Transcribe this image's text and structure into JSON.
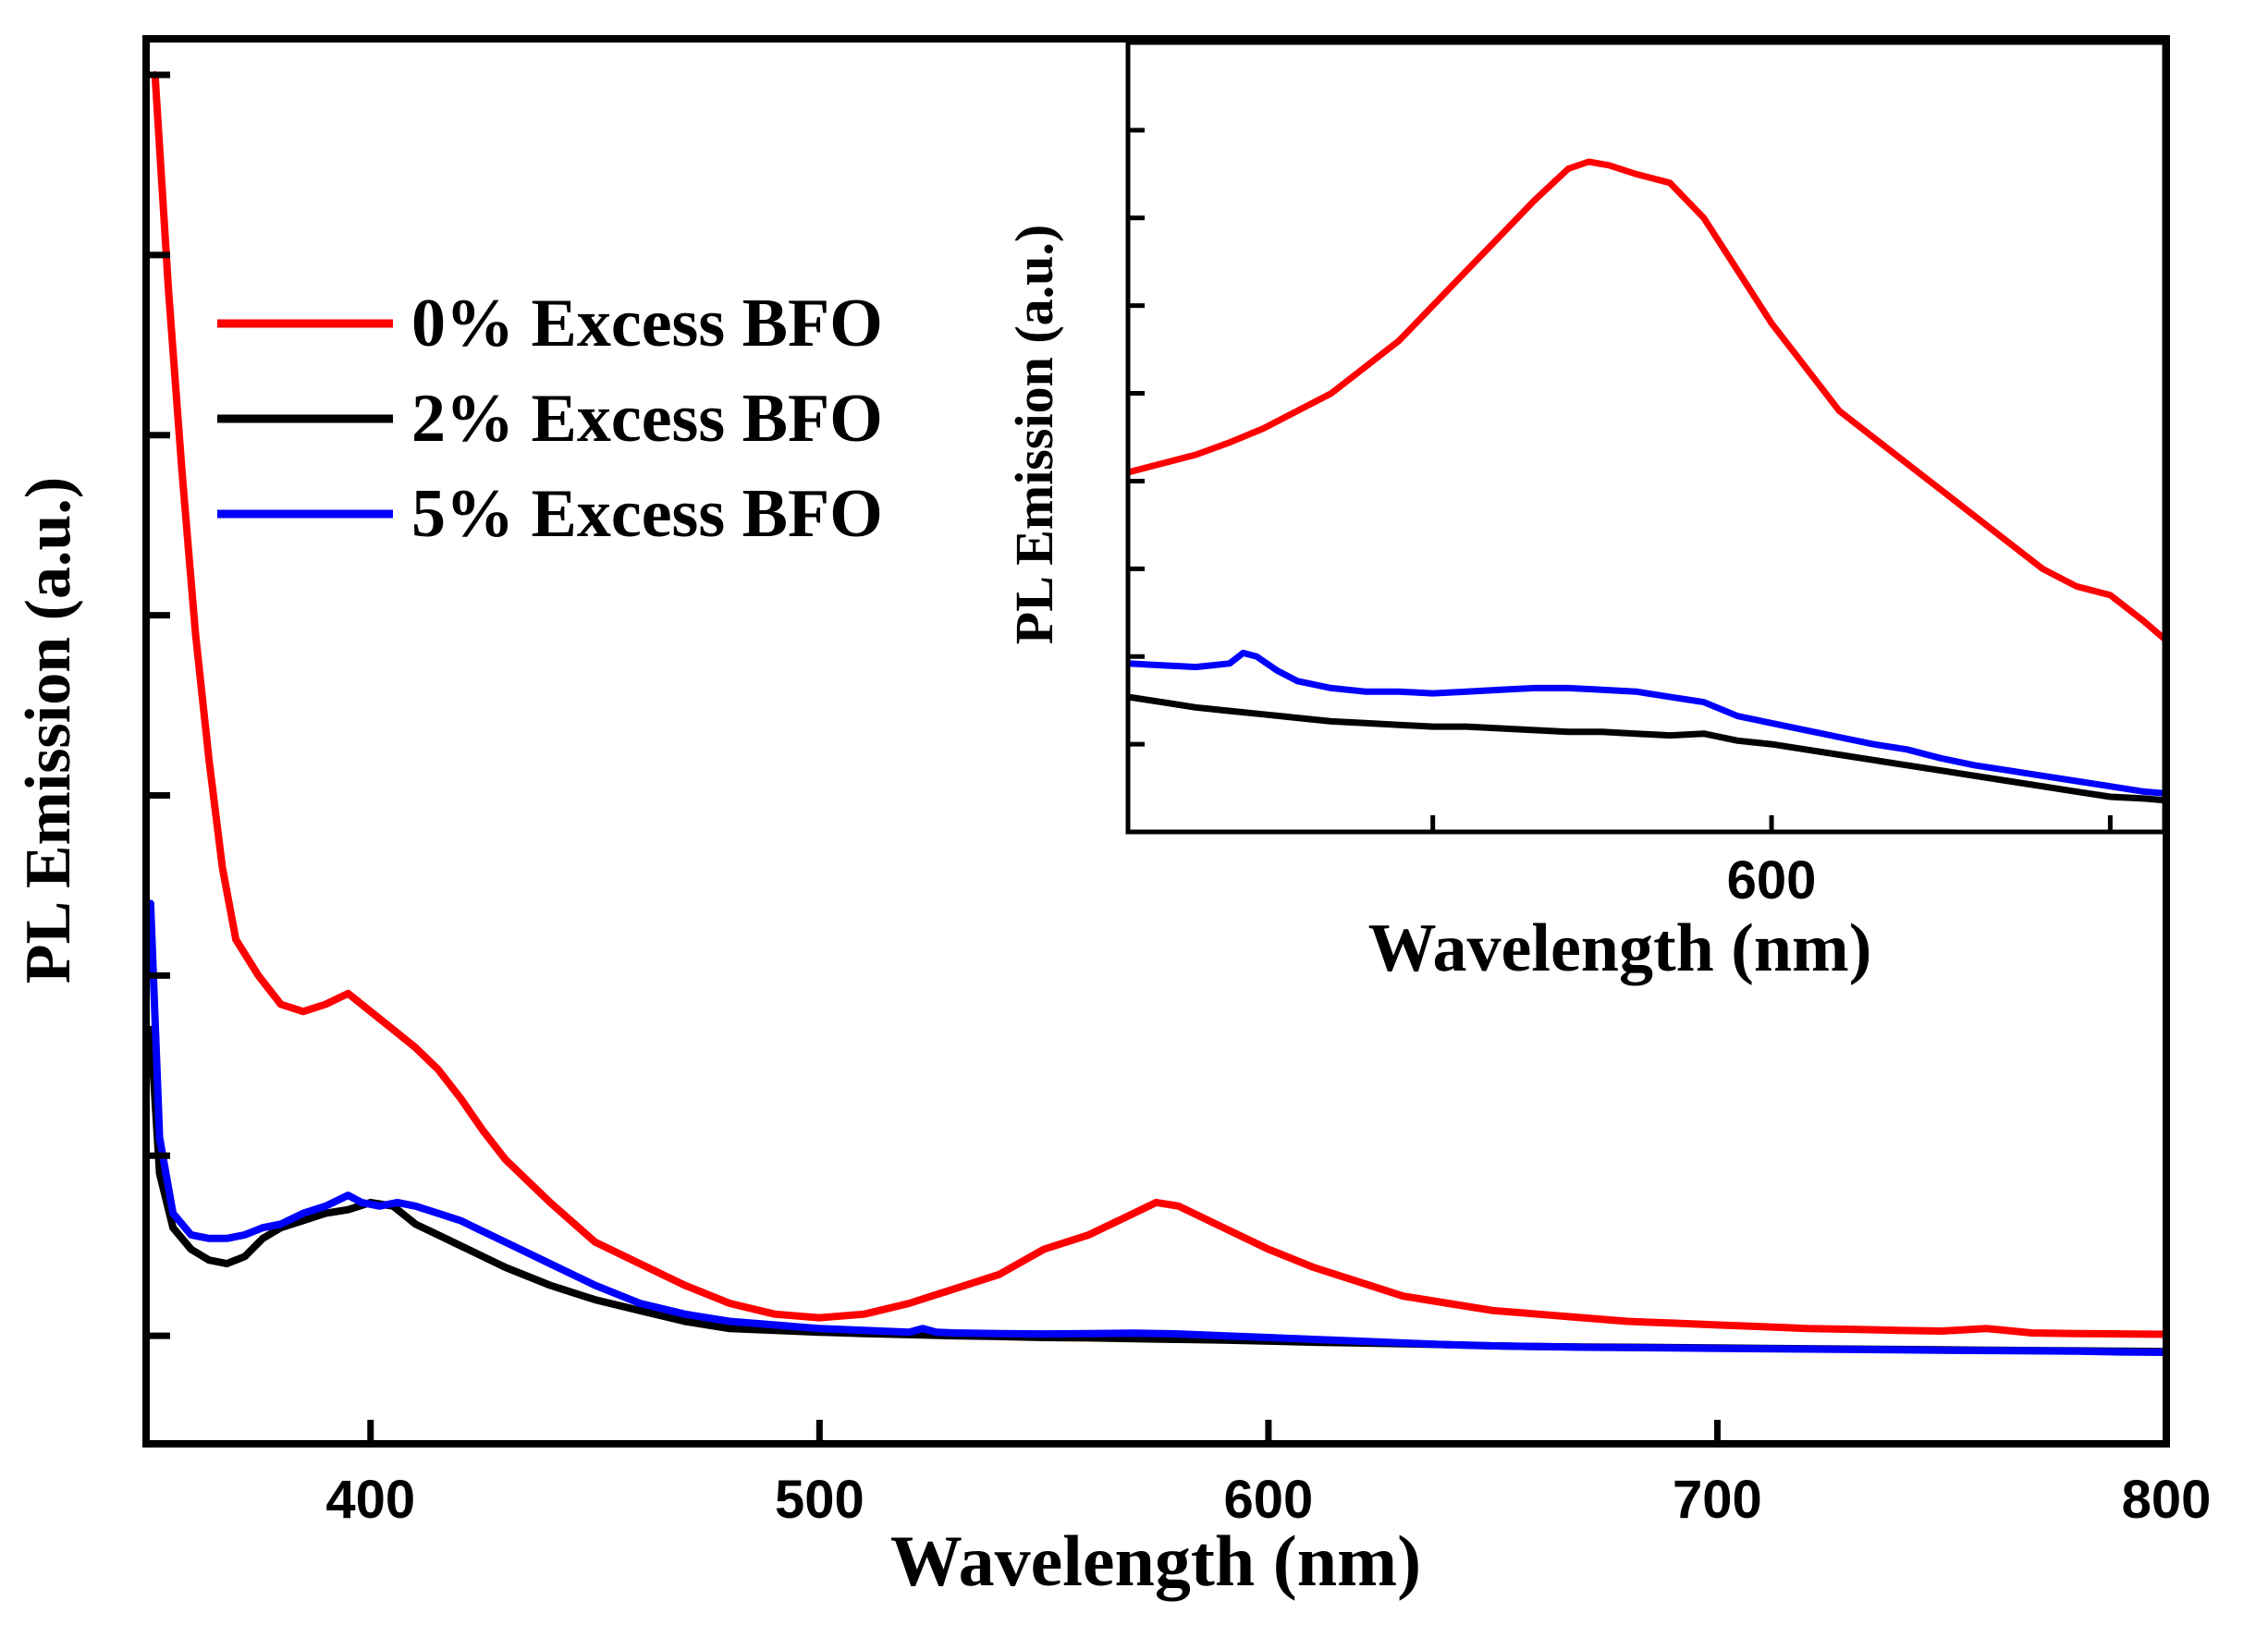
{
  "chart_data": [
    {
      "type": "line",
      "xlabel": "Wavelength (nm)",
      "ylabel": "PL Emission (a.u.)",
      "xlim": [
        350,
        800
      ],
      "ylim": [
        -0.3,
        3.6
      ],
      "x_tick_labels": [
        "400",
        "500",
        "600",
        "700",
        "800"
      ],
      "y_ticks_unlabeled": [
        0,
        0.5,
        1,
        1.5,
        2,
        2.5,
        3,
        3.5
      ],
      "legend_position": "upper-left",
      "series": [
        {
          "name": "0% Excess BFO",
          "color": "#ff0000",
          "x": [
            352,
            355,
            358,
            361,
            364,
            367,
            370,
            375,
            380,
            385,
            390,
            395,
            400,
            405,
            410,
            415,
            420,
            425,
            430,
            440,
            450,
            460,
            470,
            480,
            490,
            500,
            510,
            520,
            530,
            540,
            550,
            560,
            570,
            575,
            580,
            590,
            600,
            610,
            620,
            630,
            640,
            650,
            660,
            670,
            680,
            690,
            700,
            710,
            720,
            730,
            740,
            750,
            760,
            770,
            780,
            790,
            800
          ],
          "y": [
            3.5,
            2.9,
            2.4,
            1.95,
            1.6,
            1.3,
            1.1,
            1.0,
            0.92,
            0.9,
            0.92,
            0.95,
            0.9,
            0.85,
            0.8,
            0.74,
            0.66,
            0.57,
            0.49,
            0.37,
            0.26,
            0.2,
            0.14,
            0.09,
            0.06,
            0.05,
            0.06,
            0.09,
            0.13,
            0.17,
            0.24,
            0.28,
            0.34,
            0.37,
            0.36,
            0.3,
            0.24,
            0.19,
            0.15,
            0.11,
            0.09,
            0.07,
            0.06,
            0.05,
            0.04,
            0.035,
            0.03,
            0.025,
            0.02,
            0.018,
            0.015,
            0.013,
            0.02,
            0.008,
            0.006,
            0.005,
            0.004
          ]
        },
        {
          "name": "2% Excess BFO",
          "color": "#000000",
          "x": [
            351,
            353,
            356,
            360,
            364,
            368,
            372,
            376,
            380,
            385,
            390,
            395,
            400,
            405,
            410,
            415,
            420,
            425,
            430,
            440,
            450,
            460,
            470,
            480,
            490,
            500,
            510,
            520,
            530,
            540,
            550,
            560,
            570,
            580,
            590,
            600,
            610,
            620,
            630,
            640,
            650,
            660,
            670,
            680,
            690,
            700,
            710,
            720,
            730,
            740,
            750,
            760,
            770,
            780,
            790,
            800
          ],
          "y": [
            0.85,
            0.45,
            0.3,
            0.24,
            0.21,
            0.2,
            0.22,
            0.27,
            0.3,
            0.32,
            0.34,
            0.35,
            0.37,
            0.36,
            0.31,
            0.28,
            0.25,
            0.22,
            0.19,
            0.14,
            0.1,
            0.07,
            0.04,
            0.02,
            0.015,
            0.01,
            0.006,
            0.003,
            0.0,
            -0.002,
            -0.005,
            -0.006,
            -0.008,
            -0.01,
            -0.012,
            -0.015,
            -0.018,
            -0.02,
            -0.022,
            -0.025,
            -0.028,
            -0.03,
            -0.031,
            -0.032,
            -0.033,
            -0.034,
            -0.035,
            -0.036,
            -0.037,
            -0.038,
            -0.039,
            -0.04,
            -0.041,
            -0.042,
            -0.043,
            -0.044
          ]
        },
        {
          "name": "5% Excess BFO",
          "color": "#0000ff",
          "x": [
            351,
            353,
            356,
            360,
            364,
            368,
            372,
            376,
            380,
            385,
            390,
            395,
            398,
            402,
            406,
            410,
            415,
            420,
            425,
            430,
            440,
            450,
            460,
            470,
            480,
            490,
            500,
            510,
            520,
            523,
            526,
            530,
            540,
            550,
            560,
            570,
            580,
            590,
            600,
            610,
            620,
            630,
            640,
            650,
            660,
            670,
            680,
            690,
            700,
            710,
            720,
            730,
            740,
            750,
            760,
            770,
            780,
            790,
            800
          ],
          "y": [
            1.2,
            0.55,
            0.34,
            0.28,
            0.27,
            0.27,
            0.28,
            0.3,
            0.31,
            0.34,
            0.36,
            0.39,
            0.37,
            0.36,
            0.37,
            0.36,
            0.34,
            0.32,
            0.29,
            0.26,
            0.2,
            0.14,
            0.09,
            0.06,
            0.04,
            0.03,
            0.02,
            0.015,
            0.01,
            0.02,
            0.01,
            0.008,
            0.006,
            0.005,
            0.006,
            0.007,
            0.005,
            0.0,
            -0.005,
            -0.01,
            -0.015,
            -0.02,
            -0.025,
            -0.028,
            -0.03,
            -0.032,
            -0.033,
            -0.034,
            -0.035,
            -0.036,
            -0.037,
            -0.038,
            -0.039,
            -0.04,
            -0.041,
            -0.042,
            -0.043,
            -0.045,
            -0.046
          ]
        }
      ]
    },
    {
      "type": "line",
      "role": "inset",
      "xlabel": "Wavelength (nm)",
      "ylabel": "PL Emission (a.u.)",
      "xlim": [
        505,
        658
      ],
      "ylim": [
        -0.05,
        0.4
      ],
      "x_tick_labels": [
        "600"
      ],
      "x_ticks_unlabeled": [
        550,
        650
      ],
      "y_ticks_unlabeled": [
        0.0,
        0.05,
        0.1,
        0.15,
        0.2,
        0.25,
        0.3,
        0.35
      ],
      "series": [
        {
          "name": "0% Excess BFO",
          "color": "#ff0000",
          "x": [
            505,
            510,
            515,
            520,
            525,
            530,
            535,
            540,
            545,
            550,
            555,
            560,
            565,
            570,
            573,
            576,
            580,
            585,
            590,
            595,
            600,
            605,
            610,
            615,
            620,
            625,
            630,
            635,
            640,
            645,
            650,
            655,
            658
          ],
          "y": [
            0.155,
            0.16,
            0.165,
            0.172,
            0.18,
            0.19,
            0.2,
            0.215,
            0.23,
            0.25,
            0.27,
            0.29,
            0.31,
            0.328,
            0.332,
            0.33,
            0.325,
            0.32,
            0.3,
            0.27,
            0.24,
            0.215,
            0.19,
            0.175,
            0.16,
            0.145,
            0.13,
            0.115,
            0.1,
            0.09,
            0.085,
            0.07,
            0.06
          ]
        },
        {
          "name": "2% Excess BFO",
          "color": "#000000",
          "x": [
            505,
            510,
            515,
            520,
            525,
            530,
            535,
            540,
            545,
            550,
            555,
            560,
            565,
            570,
            575,
            580,
            585,
            590,
            595,
            600,
            605,
            610,
            615,
            620,
            625,
            630,
            635,
            640,
            645,
            650,
            655,
            658
          ],
          "y": [
            0.027,
            0.024,
            0.021,
            0.019,
            0.017,
            0.015,
            0.013,
            0.012,
            0.011,
            0.01,
            0.01,
            0.009,
            0.008,
            0.007,
            0.007,
            0.006,
            0.005,
            0.006,
            0.002,
            0.0,
            -0.003,
            -0.006,
            -0.009,
            -0.012,
            -0.015,
            -0.018,
            -0.021,
            -0.024,
            -0.027,
            -0.03,
            -0.031,
            -0.032
          ]
        },
        {
          "name": "5% Excess BFO",
          "color": "#0000ff",
          "x": [
            505,
            510,
            515,
            520,
            522,
            524,
            527,
            530,
            535,
            540,
            545,
            550,
            555,
            560,
            565,
            570,
            575,
            580,
            585,
            590,
            595,
            600,
            605,
            610,
            615,
            620,
            625,
            630,
            635,
            640,
            645,
            650,
            655,
            658
          ],
          "y": [
            0.046,
            0.045,
            0.044,
            0.046,
            0.052,
            0.05,
            0.042,
            0.036,
            0.032,
            0.03,
            0.03,
            0.029,
            0.03,
            0.031,
            0.032,
            0.032,
            0.031,
            0.03,
            0.027,
            0.024,
            0.016,
            0.012,
            0.008,
            0.004,
            0.0,
            -0.003,
            -0.008,
            -0.012,
            -0.015,
            -0.018,
            -0.021,
            -0.024,
            -0.027,
            -0.028
          ]
        }
      ]
    }
  ]
}
